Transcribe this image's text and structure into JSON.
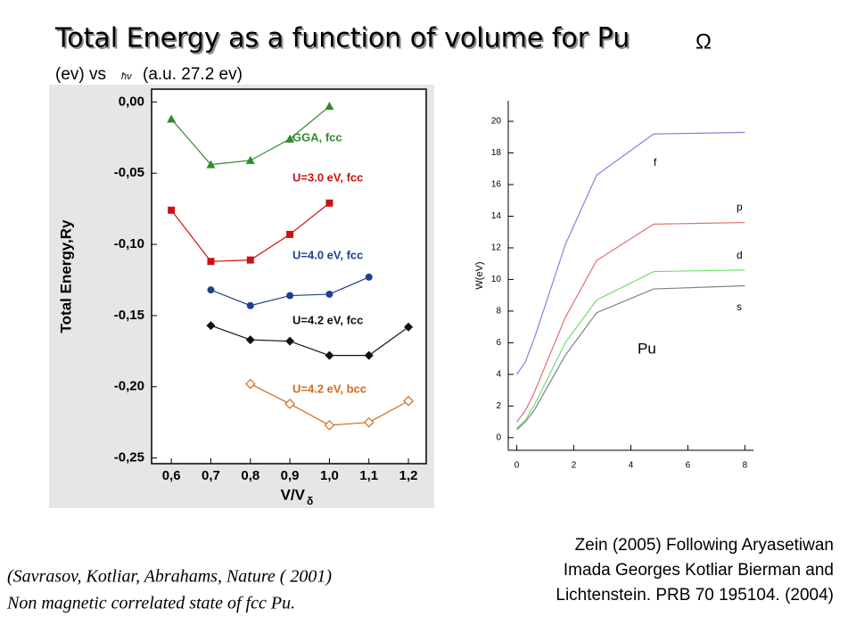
{
  "title": "Total Energy as a function of volume for Pu",
  "title_symbol": "Ω",
  "subtitle_start": "(ev) vs",
  "subtitle_symbol": "ħν",
  "subtitle_end": "(a.u. 27.2 ev)",
  "citation": [
    "(Savrasov, Kotliar, Abrahams,  Nature ( 2001)",
    "Non magnetic correlated state of fcc Pu."
  ],
  "source": [
    "Zein (2005) Following Aryasetiwan",
    "Imada Georges Kotliar Bierman and",
    "Lichtenstein. PRB 70 195104.  (2004)"
  ],
  "chart_data": [
    {
      "type": "scatter",
      "ylabel": "Total Energy,Ry",
      "xlabel": "V/V",
      "xlabel_sub": "δ",
      "xlim": [
        0.55,
        1.245
      ],
      "ylim": [
        -0.254,
        0.009
      ],
      "xticks": [
        {
          "value": 0.6,
          "label": "0,6"
        },
        {
          "value": 0.7,
          "label": "0,7"
        },
        {
          "value": 0.8,
          "label": "0,8"
        },
        {
          "value": 0.9,
          "label": "0,9"
        },
        {
          "value": 1.0,
          "label": "1,0"
        },
        {
          "value": 1.1,
          "label": "1,1"
        },
        {
          "value": 1.2,
          "label": "1,2"
        }
      ],
      "yticks": [
        {
          "value": 0,
          "label": "0,00"
        },
        {
          "value": -0.05,
          "label": "-0,05"
        },
        {
          "value": -0.1,
          "label": "-0,10"
        },
        {
          "value": -0.15,
          "label": "-0,15"
        },
        {
          "value": -0.2,
          "label": "-0,20"
        },
        {
          "value": -0.25,
          "label": "-0,25"
        }
      ],
      "series": [
        {
          "name": "GGA, fcc",
          "color": "#2e8b2e",
          "marker": "triangle",
          "x": [
            0.6,
            0.7,
            0.8,
            0.9,
            1.0
          ],
          "values": [
            -0.012,
            -0.044,
            -0.041,
            -0.026,
            -0.003
          ]
        },
        {
          "name": "U=3.0 eV, fcc",
          "color": "#cc1111",
          "marker": "square",
          "x": [
            0.6,
            0.7,
            0.8,
            0.9,
            1.0
          ],
          "values": [
            -0.076,
            -0.112,
            -0.111,
            -0.093,
            -0.071
          ]
        },
        {
          "name": "U=4.0 eV, fcc",
          "color": "#1f3f8f",
          "marker": "circle",
          "x": [
            0.7,
            0.8,
            0.9,
            1.0,
            1.1
          ],
          "values": [
            -0.132,
            -0.143,
            -0.136,
            -0.135,
            -0.123
          ]
        },
        {
          "name": "U=4.2 eV, fcc",
          "color": "#111111",
          "marker": "diamond",
          "x": [
            0.7,
            0.8,
            0.9,
            1.0,
            1.1,
            1.2
          ],
          "values": [
            -0.157,
            -0.167,
            -0.168,
            -0.178,
            -0.178,
            -0.158
          ]
        },
        {
          "name": "U=4.2 eV, bcc",
          "color": "#d2691e",
          "marker": "diamond-open",
          "x": [
            0.8,
            0.9,
            1.0,
            1.1,
            1.2
          ],
          "values": [
            -0.198,
            -0.212,
            -0.227,
            -0.225,
            -0.21
          ]
        }
      ]
    },
    {
      "type": "line",
      "ylabel": "W(eV)",
      "annotation": "Pu",
      "xlim": [
        -0.3,
        8.3
      ],
      "ylim": [
        -0.8,
        21.3
      ],
      "xticks": [
        0,
        2,
        4,
        6,
        8
      ],
      "yticks": [
        0,
        2,
        4,
        6,
        8,
        10,
        12,
        14,
        16,
        18,
        20
      ],
      "series": [
        {
          "name": "f",
          "color": "#7b86e0",
          "x": [
            0,
            0.3,
            0.6,
            1.7,
            2.8,
            4.8,
            8
          ],
          "values": [
            4.0,
            4.8,
            6.2,
            12.2,
            16.6,
            19.2,
            19.3
          ]
        },
        {
          "name": "p",
          "color": "#e07070",
          "x": [
            0,
            0.3,
            0.6,
            1.7,
            2.8,
            4.8,
            8
          ],
          "values": [
            1.0,
            1.7,
            2.8,
            7.6,
            11.2,
            13.5,
            13.6
          ]
        },
        {
          "name": "d",
          "color": "#6ee06e",
          "x": [
            0,
            0.3,
            0.6,
            1.7,
            2.8,
            4.8,
            8
          ],
          "values": [
            0.6,
            1.1,
            2.0,
            6.0,
            8.7,
            10.5,
            10.6
          ]
        },
        {
          "name": "s",
          "color": "#808080",
          "x": [
            0,
            0.3,
            0.6,
            1.7,
            2.8,
            4.8,
            8
          ],
          "values": [
            0.5,
            1.0,
            1.7,
            5.2,
            7.9,
            9.4,
            9.6
          ]
        }
      ]
    }
  ]
}
